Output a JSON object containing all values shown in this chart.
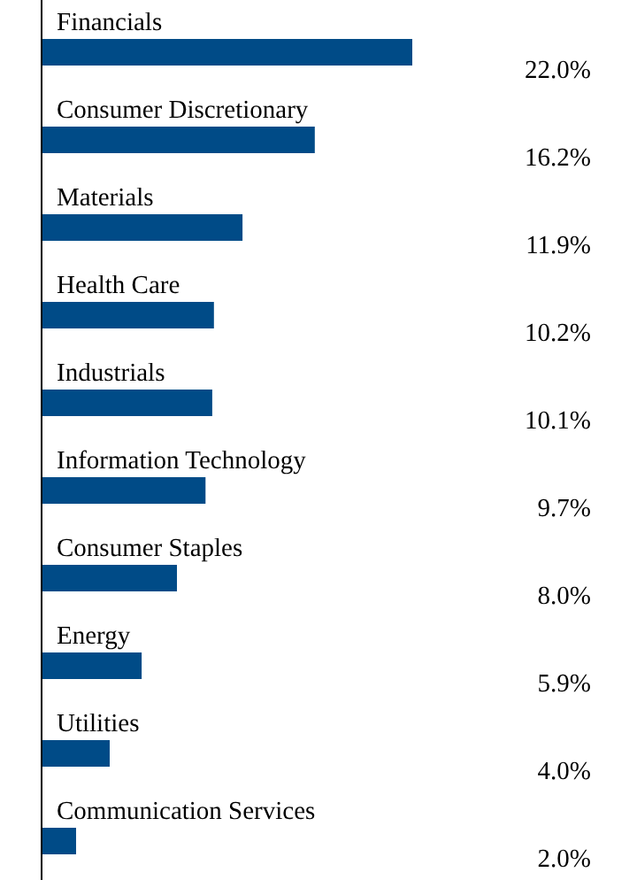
{
  "chart_data": {
    "type": "bar",
    "orientation": "horizontal",
    "categories": [
      "Financials",
      "Consumer Discretionary",
      "Materials",
      "Health Care",
      "Industrials",
      "Information Technology",
      "Consumer Staples",
      "Energy",
      "Utilities",
      "Communication Services"
    ],
    "values": [
      22.0,
      16.2,
      11.9,
      10.2,
      10.1,
      9.7,
      8.0,
      5.9,
      4.0,
      2.0
    ],
    "value_labels": [
      "22.0%",
      "16.2%",
      "11.9%",
      "10.2%",
      "10.1%",
      "9.7%",
      "8.0%",
      "5.9%",
      "4.0%",
      "2.0%"
    ],
    "color": "#004b87"
  }
}
